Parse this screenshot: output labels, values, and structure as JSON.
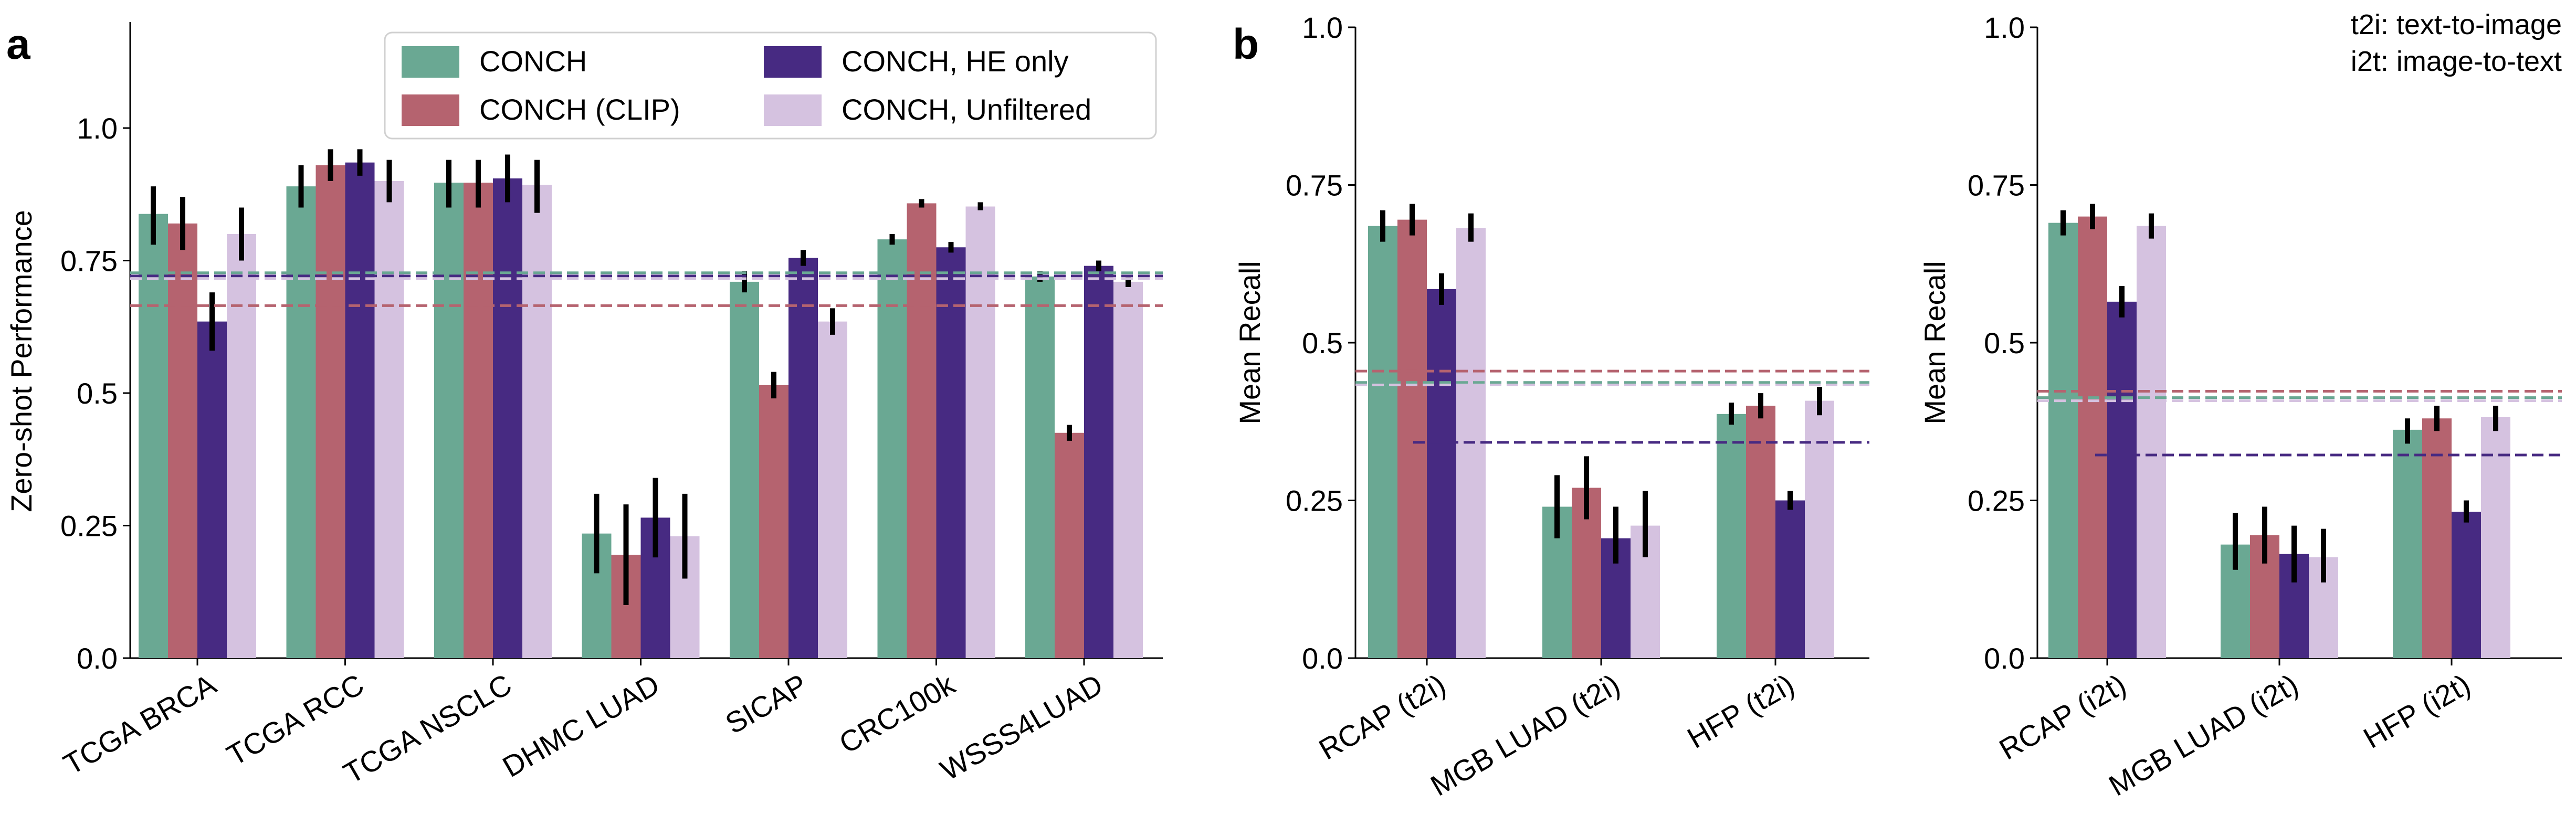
{
  "palette": {
    "CONCH": "#6aa893",
    "CONCH (CLIP)": "#b5636f",
    "CONCH, HE only": "#472a82",
    "CONCH, Unfiltered": "#d5c2e0"
  },
  "chart_data": [
    {
      "panel": "a",
      "type": "bar",
      "title": "",
      "xlabel": "",
      "ylabel": "Zero-shot Performance",
      "ylim": [
        0,
        1.2
      ],
      "yticks": [
        "0.0",
        "0.25",
        "0.5",
        "0.75",
        "1.0"
      ],
      "categories": [
        "TCGA BRCA",
        "TCGA RCC",
        "TCGA NSCLC",
        "DHMC LUAD",
        "SICAP",
        "CRC100k",
        "WSSS4LUAD"
      ],
      "legend": {
        "location": "top-right",
        "ncol": 2,
        "order": [
          "CONCH",
          "CONCH (CLIP)",
          "CONCH, HE only",
          "CONCH, Unfiltered"
        ]
      },
      "series": [
        {
          "name": "CONCH",
          "values": [
            0.838,
            0.89,
            0.897,
            0.235,
            0.71,
            0.79,
            0.72
          ],
          "errors": [
            [
              0.78,
              0.89
            ],
            [
              0.85,
              0.93
            ],
            [
              0.85,
              0.94
            ],
            [
              0.16,
              0.31
            ],
            [
              0.69,
              0.73
            ],
            [
              0.78,
              0.8
            ],
            [
              0.71,
              0.73
            ]
          ]
        },
        {
          "name": "CONCH (CLIP)",
          "values": [
            0.82,
            0.93,
            0.897,
            0.195,
            0.515,
            0.858,
            0.425
          ],
          "errors": [
            [
              0.77,
              0.87
            ],
            [
              0.9,
              0.96
            ],
            [
              0.85,
              0.94
            ],
            [
              0.1,
              0.29
            ],
            [
              0.49,
              0.54
            ],
            [
              0.85,
              0.866
            ],
            [
              0.41,
              0.44
            ]
          ]
        },
        {
          "name": "CONCH, HE only",
          "values": [
            0.635,
            0.935,
            0.905,
            0.265,
            0.755,
            0.775,
            0.74
          ],
          "errors": [
            [
              0.58,
              0.69
            ],
            [
              0.91,
              0.96
            ],
            [
              0.86,
              0.95
            ],
            [
              0.19,
              0.34
            ],
            [
              0.74,
              0.77
            ],
            [
              0.765,
              0.785
            ],
            [
              0.73,
              0.75
            ]
          ]
        },
        {
          "name": "CONCH, Unfiltered",
          "values": [
            0.8,
            0.9,
            0.893,
            0.23,
            0.635,
            0.852,
            0.71
          ],
          "errors": [
            [
              0.75,
              0.85
            ],
            [
              0.86,
              0.94
            ],
            [
              0.84,
              0.94
            ],
            [
              0.15,
              0.31
            ],
            [
              0.61,
              0.66
            ],
            [
              0.845,
              0.86
            ],
            [
              0.7,
              0.72
            ]
          ]
        }
      ],
      "mean_lines": {
        "CONCH": 0.727,
        "CONCH (CLIP)": 0.665,
        "CONCH, HE only": 0.721,
        "CONCH, Unfiltered": 0.716
      }
    },
    {
      "panel": "b",
      "type": "bar",
      "title": "",
      "xlabel": "",
      "ylabel": "Mean Recall",
      "ylim": [
        0,
        1.0
      ],
      "yticks": [
        "0.0",
        "0.25",
        "0.5",
        "0.75",
        "1.0"
      ],
      "categories": [
        "RCAP (t2i)",
        "MGB LUAD (t2i)",
        "HFP (t2i)"
      ],
      "series": [
        {
          "name": "CONCH",
          "values": [
            0.685,
            0.24,
            0.387
          ],
          "errors": [
            [
              0.66,
              0.71
            ],
            [
              0.19,
              0.29
            ],
            [
              0.37,
              0.405
            ]
          ]
        },
        {
          "name": "CONCH (CLIP)",
          "values": [
            0.695,
            0.27,
            0.4
          ],
          "errors": [
            [
              0.67,
              0.72
            ],
            [
              0.22,
              0.32
            ],
            [
              0.38,
              0.42
            ]
          ]
        },
        {
          "name": "CONCH, HE only",
          "values": [
            0.585,
            0.19,
            0.25
          ],
          "errors": [
            [
              0.56,
              0.61
            ],
            [
              0.15,
              0.24
            ],
            [
              0.235,
              0.265
            ]
          ]
        },
        {
          "name": "CONCH, Unfiltered",
          "values": [
            0.682,
            0.21,
            0.408
          ],
          "errors": [
            [
              0.66,
              0.705
            ],
            [
              0.16,
              0.265
            ],
            [
              0.385,
              0.43
            ]
          ]
        }
      ],
      "mean_lines": {
        "CONCH": 0.437,
        "CONCH (CLIP)": 0.455,
        "CONCH, HE only": 0.342,
        "CONCH, Unfiltered": 0.433
      }
    },
    {
      "panel": "b-right",
      "type": "bar",
      "title": "",
      "xlabel": "",
      "ylabel": "Mean Recall",
      "ylim": [
        0,
        1.0
      ],
      "yticks": [
        "0.0",
        "0.25",
        "0.5",
        "0.75",
        "1.0"
      ],
      "categories": [
        "RCAP (i2t)",
        "MGB LUAD (i2t)",
        "HFP (i2t)"
      ],
      "annotations": [
        "t2i: text-to-image",
        "i2t: image-to-text"
      ],
      "series": [
        {
          "name": "CONCH",
          "values": [
            0.69,
            0.18,
            0.362
          ],
          "errors": [
            [
              0.67,
              0.71
            ],
            [
              0.14,
              0.23
            ],
            [
              0.34,
              0.38
            ]
          ]
        },
        {
          "name": "CONCH (CLIP)",
          "values": [
            0.7,
            0.195,
            0.38
          ],
          "errors": [
            [
              0.68,
              0.72
            ],
            [
              0.15,
              0.24
            ],
            [
              0.36,
              0.4
            ]
          ]
        },
        {
          "name": "CONCH, HE only",
          "values": [
            0.565,
            0.165,
            0.232
          ],
          "errors": [
            [
              0.54,
              0.59
            ],
            [
              0.12,
              0.21
            ],
            [
              0.215,
              0.25
            ]
          ]
        },
        {
          "name": "CONCH, Unfiltered",
          "values": [
            0.685,
            0.16,
            0.382
          ],
          "errors": [
            [
              0.665,
              0.705
            ],
            [
              0.12,
              0.205
            ],
            [
              0.36,
              0.4
            ]
          ]
        }
      ],
      "mean_lines": {
        "CONCH": 0.413,
        "CONCH (CLIP)": 0.423,
        "CONCH, HE only": 0.322,
        "CONCH, Unfiltered": 0.408
      }
    }
  ],
  "panel_labels": [
    "a",
    "b"
  ]
}
